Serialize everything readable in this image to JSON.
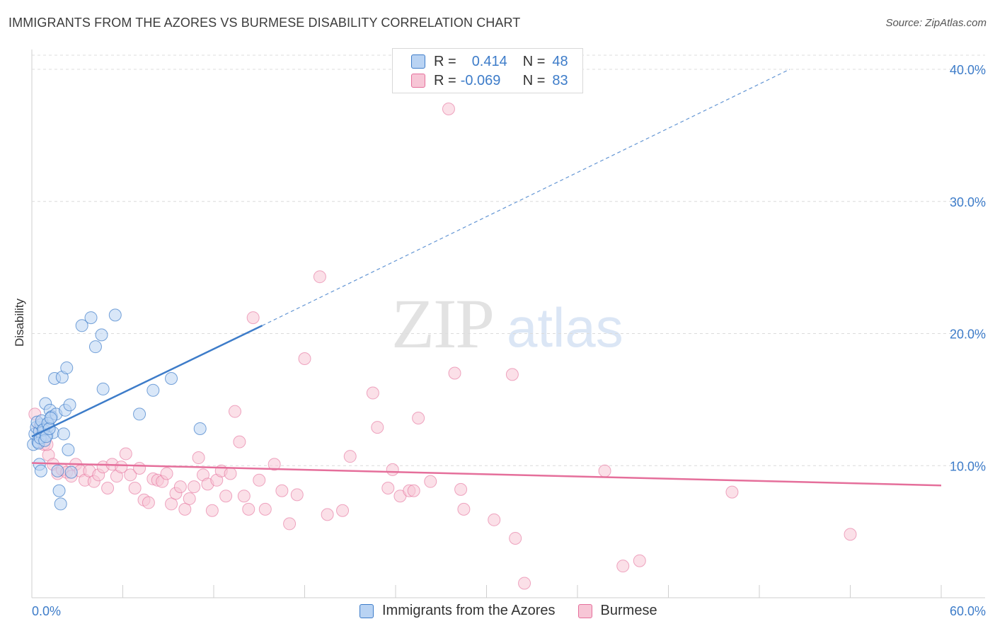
{
  "title": "IMMIGRANTS FROM THE AZORES VS BURMESE DISABILITY CORRELATION CHART",
  "source": "Source: ZipAtlas.com",
  "watermark": {
    "zip": "ZIP",
    "atlas": "atlas"
  },
  "colors": {
    "blue": "#3d7cc9",
    "blue_fill": "#b9d3f3",
    "pink": "#e56f9b",
    "pink_fill": "#f7c6d6"
  },
  "legend": {
    "rows": [
      {
        "r_label": "R =",
        "r_value": "0.414",
        "n_label": "N =",
        "n_value": "48"
      },
      {
        "r_label": "R =",
        "r_value": "-0.069",
        "n_label": "N =",
        "n_value": "83"
      }
    ]
  },
  "chart_data": {
    "type": "scatter",
    "title": "IMMIGRANTS FROM THE AZORES VS BURMESE DISABILITY CORRELATION CHART",
    "xlabel": "",
    "ylabel": "Disability",
    "xlim": [
      0,
      60
    ],
    "ylim": [
      0,
      41
    ],
    "x_tick_labels": [
      "0.0%",
      "60.0%"
    ],
    "y_ticks": [
      10,
      20,
      30,
      40
    ],
    "y_tick_labels": [
      "10.0%",
      "20.0%",
      "30.0%",
      "40.0%"
    ],
    "grid": true,
    "legend_position": "top-center",
    "series": [
      {
        "name": "Immigrants from the Azores",
        "color": "#3d7cc9",
        "r": 0.414,
        "n": 48,
        "trend": {
          "x": [
            0,
            15.2
          ],
          "y": [
            12.2,
            20.6
          ],
          "dashed_to": [
            50,
            40
          ]
        },
        "points": [
          [
            0.1,
            11.6
          ],
          [
            0.2,
            12.4
          ],
          [
            0.3,
            12.9
          ],
          [
            0.4,
            11.8
          ],
          [
            0.5,
            12.6
          ],
          [
            0.6,
            13.1
          ],
          [
            0.7,
            12.2
          ],
          [
            0.8,
            12.8
          ],
          [
            0.9,
            14.7
          ],
          [
            1.0,
            12.3
          ],
          [
            1.1,
            13.0
          ],
          [
            1.2,
            14.2
          ],
          [
            1.3,
            13.7
          ],
          [
            1.4,
            12.5
          ],
          [
            1.5,
            16.6
          ],
          [
            1.6,
            13.9
          ],
          [
            1.7,
            9.6
          ],
          [
            1.8,
            8.1
          ],
          [
            1.9,
            7.1
          ],
          [
            2.0,
            16.7
          ],
          [
            2.1,
            12.4
          ],
          [
            2.2,
            14.2
          ],
          [
            2.3,
            17.4
          ],
          [
            2.4,
            11.2
          ],
          [
            2.5,
            14.6
          ],
          [
            2.6,
            9.5
          ],
          [
            3.3,
            20.6
          ],
          [
            3.9,
            21.2
          ],
          [
            4.2,
            19.0
          ],
          [
            4.6,
            19.9
          ],
          [
            4.7,
            15.8
          ],
          [
            5.5,
            21.4
          ],
          [
            7.1,
            13.9
          ],
          [
            8.0,
            15.7
          ],
          [
            9.2,
            16.6
          ],
          [
            11.1,
            12.8
          ],
          [
            0.35,
            13.3
          ],
          [
            0.45,
            11.7
          ],
          [
            0.55,
            12.1
          ],
          [
            0.65,
            13.4
          ],
          [
            0.75,
            12.7
          ],
          [
            0.85,
            11.9
          ],
          [
            0.95,
            12.2
          ],
          [
            1.05,
            13.2
          ],
          [
            1.15,
            12.8
          ],
          [
            1.25,
            13.6
          ],
          [
            0.5,
            10.1
          ],
          [
            0.6,
            9.6
          ]
        ]
      },
      {
        "name": "Burmese",
        "color": "#e56f9b",
        "r": -0.069,
        "n": 83,
        "trend": {
          "x": [
            0,
            60
          ],
          "y": [
            10.2,
            8.5
          ]
        },
        "points": [
          [
            0.2,
            13.9
          ],
          [
            0.5,
            12.9
          ],
          [
            0.8,
            11.6
          ],
          [
            1.1,
            10.8
          ],
          [
            1.4,
            10.1
          ],
          [
            1.7,
            9.4
          ],
          [
            2.0,
            9.7
          ],
          [
            2.3,
            9.5
          ],
          [
            2.6,
            9.2
          ],
          [
            2.9,
            10.1
          ],
          [
            3.2,
            9.6
          ],
          [
            3.5,
            8.9
          ],
          [
            3.8,
            9.6
          ],
          [
            4.1,
            8.8
          ],
          [
            4.4,
            9.3
          ],
          [
            4.7,
            9.9
          ],
          [
            5.0,
            8.3
          ],
          [
            5.3,
            10.1
          ],
          [
            5.6,
            9.2
          ],
          [
            5.9,
            9.9
          ],
          [
            6.2,
            10.9
          ],
          [
            6.5,
            9.3
          ],
          [
            6.8,
            8.3
          ],
          [
            7.1,
            9.8
          ],
          [
            7.4,
            7.4
          ],
          [
            7.7,
            7.2
          ],
          [
            8.0,
            9.0
          ],
          [
            8.3,
            8.9
          ],
          [
            8.6,
            8.8
          ],
          [
            8.9,
            9.4
          ],
          [
            9.2,
            7.1
          ],
          [
            9.5,
            7.9
          ],
          [
            9.8,
            8.4
          ],
          [
            10.1,
            6.7
          ],
          [
            10.4,
            7.5
          ],
          [
            10.7,
            8.4
          ],
          [
            11.0,
            10.6
          ],
          [
            11.3,
            9.3
          ],
          [
            11.6,
            8.6
          ],
          [
            11.9,
            6.6
          ],
          [
            12.2,
            8.9
          ],
          [
            12.5,
            9.6
          ],
          [
            12.8,
            7.7
          ],
          [
            13.1,
            9.4
          ],
          [
            13.4,
            14.1
          ],
          [
            13.7,
            11.8
          ],
          [
            14.0,
            7.7
          ],
          [
            14.3,
            6.7
          ],
          [
            14.6,
            21.2
          ],
          [
            15.0,
            8.9
          ],
          [
            15.4,
            6.7
          ],
          [
            16.0,
            10.1
          ],
          [
            16.5,
            8.1
          ],
          [
            17.0,
            5.6
          ],
          [
            17.5,
            7.8
          ],
          [
            18.0,
            18.1
          ],
          [
            19.0,
            24.3
          ],
          [
            19.5,
            6.3
          ],
          [
            20.5,
            6.6
          ],
          [
            21.0,
            10.7
          ],
          [
            22.5,
            15.5
          ],
          [
            22.8,
            12.9
          ],
          [
            23.5,
            8.3
          ],
          [
            23.8,
            9.7
          ],
          [
            24.3,
            7.7
          ],
          [
            24.9,
            8.1
          ],
          [
            25.2,
            8.1
          ],
          [
            25.5,
            13.6
          ],
          [
            26.3,
            8.8
          ],
          [
            27.5,
            37.0
          ],
          [
            27.9,
            17.0
          ],
          [
            28.3,
            8.2
          ],
          [
            28.5,
            6.7
          ],
          [
            30.5,
            5.9
          ],
          [
            31.7,
            16.9
          ],
          [
            31.9,
            4.5
          ],
          [
            32.5,
            1.1
          ],
          [
            37.8,
            9.6
          ],
          [
            39.0,
            2.4
          ],
          [
            40.1,
            2.8
          ],
          [
            46.2,
            8.0
          ],
          [
            54.0,
            4.8
          ],
          [
            1.0,
            11.6
          ]
        ]
      }
    ]
  },
  "bottom_legend": [
    {
      "label": "Immigrants from the Azores"
    },
    {
      "label": "Burmese"
    }
  ]
}
